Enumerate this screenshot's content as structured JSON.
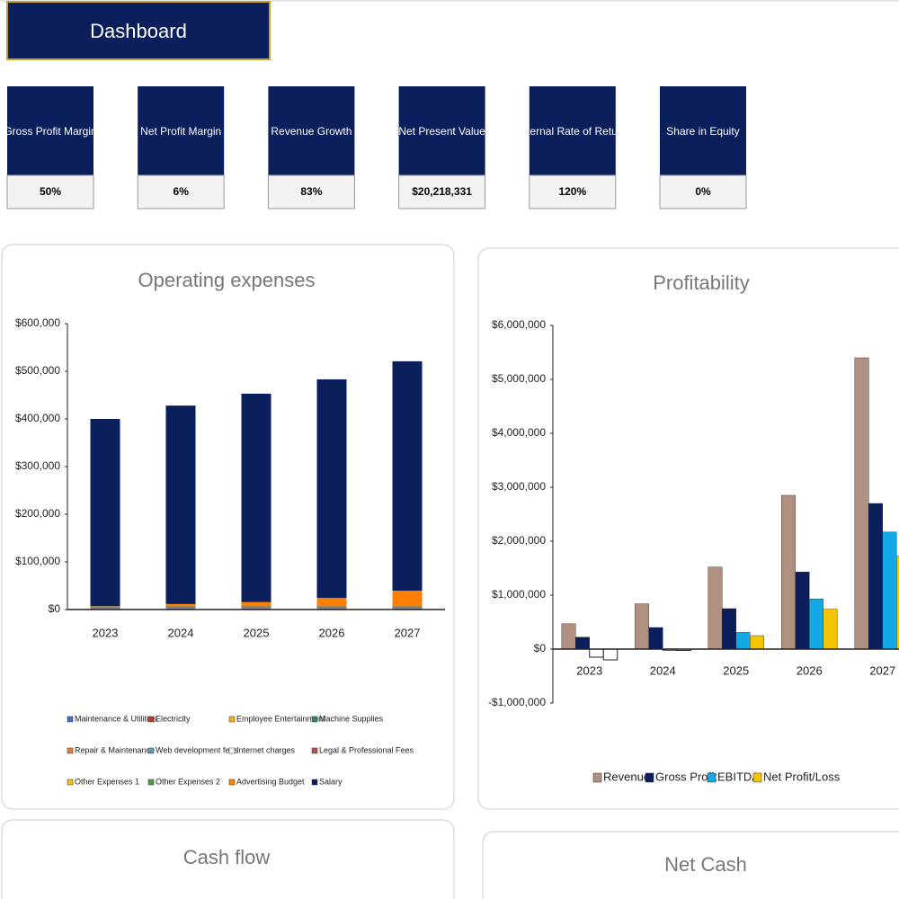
{
  "header": {
    "title": "Dashboard"
  },
  "kpis": [
    {
      "label": "Gross Profit Margin",
      "value": "50%"
    },
    {
      "label": "Net Profit Margin",
      "value": "6%"
    },
    {
      "label": "Revenue Growth",
      "value": "83%"
    },
    {
      "label": "Net Present Value",
      "value": "$20,218,331"
    },
    {
      "label": "Internal Rate of Return",
      "value": "120%"
    },
    {
      "label": "Share in Equity",
      "value": "0%"
    }
  ],
  "chart_data": [
    {
      "type": "stacked_bar",
      "title": "Operating expenses",
      "categories": [
        "2023",
        "2024",
        "2025",
        "2026",
        "2027"
      ],
      "ylim": [
        0,
        600000
      ],
      "yticks": [
        {
          "value": 0,
          "label": "$0"
        },
        {
          "value": 100000,
          "label": "$100,000"
        },
        {
          "value": 200000,
          "label": "$200,000"
        },
        {
          "value": 300000,
          "label": "$300,000"
        },
        {
          "value": 400000,
          "label": "$400,000"
        },
        {
          "value": 500000,
          "label": "$500,000"
        },
        {
          "value": 600000,
          "label": "$600,000"
        }
      ],
      "series": [
        {
          "name": "Maintenance & Utilities",
          "color": "#4472c4",
          "values": [
            3000,
            3000,
            3000,
            3000,
            3000
          ]
        },
        {
          "name": "Electricity",
          "color": "#c0392b",
          "values": [
            500,
            500,
            500,
            500,
            500
          ]
        },
        {
          "name": "Employee Entertainment",
          "color": "#f0b323",
          "values": [
            500,
            500,
            500,
            500,
            500
          ]
        },
        {
          "name": "Machine Supplies",
          "color": "#2e8b57",
          "values": [
            500,
            500,
            500,
            500,
            500
          ]
        },
        {
          "name": "Repair & Maintenance",
          "color": "#ed7d31",
          "values": [
            500,
            500,
            500,
            500,
            500
          ]
        },
        {
          "name": "Web development fees",
          "color": "#5aa0b4",
          "values": [
            500,
            500,
            500,
            500,
            500
          ]
        },
        {
          "name": "Internet charges",
          "color": "#ffffff",
          "values": [
            500,
            500,
            500,
            500,
            500
          ]
        },
        {
          "name": "Legal & Professional Fees",
          "color": "#c0504d",
          "values": [
            500,
            500,
            500,
            500,
            500
          ]
        },
        {
          "name": "Other Expenses 1",
          "color": "#ffc000",
          "values": [
            500,
            500,
            500,
            500,
            500
          ]
        },
        {
          "name": "Other Expenses 2",
          "color": "#4d9a4d",
          "values": [
            500,
            500,
            500,
            500,
            500
          ]
        },
        {
          "name": "Advertising Budget",
          "color": "#ff7f00",
          "values": [
            0,
            4000,
            8000,
            17000,
            32000
          ]
        },
        {
          "name": "Salary",
          "color": "#0b1f5c",
          "values": [
            392500,
            416500,
            437500,
            458500,
            481500
          ]
        }
      ]
    },
    {
      "type": "grouped_bar",
      "title": "Profitability",
      "categories": [
        "2023",
        "2024",
        "2025",
        "2026",
        "2027"
      ],
      "ylim": [
        -1000000,
        6000000
      ],
      "yticks": [
        {
          "value": -1000000,
          "label": "-$1,000,000"
        },
        {
          "value": 0,
          "label": "$0"
        },
        {
          "value": 1000000,
          "label": "$1,000,000"
        },
        {
          "value": 2000000,
          "label": "$2,000,000"
        },
        {
          "value": 3000000,
          "label": "$3,000,000"
        },
        {
          "value": 4000000,
          "label": "$4,000,000"
        },
        {
          "value": 5000000,
          "label": "$5,000,000"
        },
        {
          "value": 6000000,
          "label": "$6,000,000"
        }
      ],
      "invert_if_negative": true,
      "series": [
        {
          "name": "Revenue",
          "color": "#b09080",
          "values": [
            470000,
            840000,
            1520000,
            2850000,
            5400000
          ]
        },
        {
          "name": "Gross Profit",
          "color": "#0b1f5c",
          "values": [
            220000,
            400000,
            750000,
            1430000,
            2700000
          ]
        },
        {
          "name": "EBITDA",
          "color": "#13a9e6",
          "values": [
            -150000,
            -20000,
            310000,
            930000,
            2170000
          ]
        },
        {
          "name": "Net Profit/Loss",
          "color": "#f5c400",
          "values": [
            -200000,
            -25000,
            250000,
            740000,
            1720000
          ]
        }
      ]
    },
    {
      "type": "bar",
      "title": "Cash flow"
    },
    {
      "type": "bar",
      "title": "Net Cash"
    }
  ]
}
